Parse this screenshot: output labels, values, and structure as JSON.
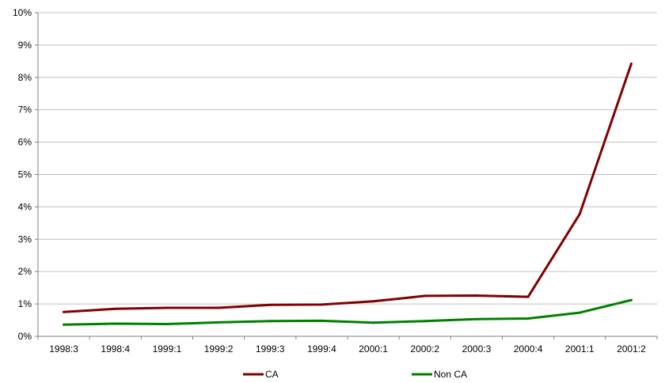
{
  "chart_data": {
    "type": "line",
    "title": "",
    "xlabel": "",
    "ylabel": "",
    "categories": [
      "1998:3",
      "1998:4",
      "1999:1",
      "1999:2",
      "1999:3",
      "1999:4",
      "2000:1",
      "2000:2",
      "2000:3",
      "2000:4",
      "2001:1",
      "2001:2"
    ],
    "ylim": [
      0,
      10
    ],
    "y_ticks": [
      "0%",
      "1%",
      "2%",
      "3%",
      "4%",
      "5%",
      "6%",
      "7%",
      "8%",
      "9%",
      "10%"
    ],
    "y_unit": "%",
    "grid": "horizontal",
    "legend_position": "bottom",
    "series": [
      {
        "name": "CA",
        "color": "#800000",
        "values": [
          0.75,
          0.85,
          0.88,
          0.88,
          0.97,
          0.98,
          1.08,
          1.25,
          1.26,
          1.22,
          3.78,
          8.42
        ]
      },
      {
        "name": "Non CA",
        "color": "#008000",
        "values": [
          0.36,
          0.39,
          0.38,
          0.43,
          0.47,
          0.48,
          0.42,
          0.47,
          0.53,
          0.55,
          0.73,
          1.12
        ]
      }
    ]
  }
}
